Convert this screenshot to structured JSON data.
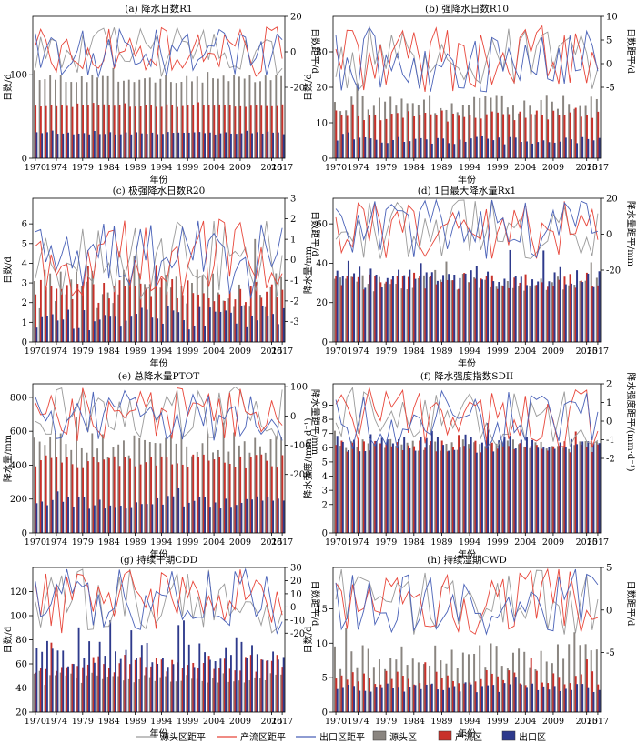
{
  "figure": {
    "colors": {
      "source_line": "#9a9a9a",
      "production_line": "#e8463a",
      "outlet_line": "#4a62b8",
      "source_bar": "#8a8580",
      "production_bar": "#c8312a",
      "outlet_bar": "#2e3a8c"
    },
    "legend": [
      {
        "label": "源头区距平",
        "kind": "line",
        "color_key": "source_line"
      },
      {
        "label": "产流区距平",
        "kind": "line",
        "color_key": "production_line"
      },
      {
        "label": "出口区距平",
        "kind": "line",
        "color_key": "outlet_line"
      },
      {
        "label": "源头区",
        "kind": "bar",
        "color_key": "source_bar"
      },
      {
        "label": "产流区",
        "kind": "bar",
        "color_key": "production_bar"
      },
      {
        "label": "出口区",
        "kind": "bar",
        "color_key": "outlet_bar"
      }
    ]
  },
  "chart_data": [
    {
      "id": "a",
      "type": "bar",
      "title": "(a) 降水日数R1",
      "xlabel": "年份",
      "ylabel": "日数/d",
      "y2label": "日数距平/d",
      "x_range": [
        1970,
        2017
      ],
      "x_ticks": [
        "1970",
        "1974",
        "1979",
        "1984",
        "1989",
        "1994",
        "1999",
        "2004",
        "2009",
        "2015",
        "2017"
      ],
      "ylim": [
        0,
        170
      ],
      "y_ticks": [
        0,
        100
      ],
      "y2lim": [
        -60,
        20
      ],
      "y2_ticks": [
        -20,
        0,
        20
      ],
      "series_base": {
        "source": 95,
        "production": 63,
        "outlet": 30
      },
      "anomaly_base": {
        "source": 5,
        "production": 1.5,
        "outlet": 1.5
      },
      "lines_band": [
        -14,
        14
      ]
    },
    {
      "id": "b",
      "type": "bar",
      "title": "(b) 强降水日数R10",
      "xlabel": "年份",
      "ylabel": "日数/d",
      "y2label": "日数距平/d",
      "x_range": [
        1970,
        2017
      ],
      "x_ticks": [
        "1970",
        "1974",
        "1979",
        "1984",
        "1989",
        "1994",
        "1999",
        "2004",
        "2009",
        "2015",
        "2017"
      ],
      "ylim": [
        0,
        40
      ],
      "y_ticks": [
        0,
        10,
        20,
        30
      ],
      "y2lim": [
        -20,
        10
      ],
      "y2_ticks": [
        -5,
        0,
        5,
        10
      ],
      "series_base": {
        "source": 15,
        "production": 12,
        "outlet": 5
      },
      "anomaly_base": {
        "source": 2.5,
        "production": 1.5,
        "outlet": 1
      },
      "lines_band": [
        -6,
        8
      ]
    },
    {
      "id": "c",
      "type": "bar",
      "title": "(c) 极强降水日数R20",
      "xlabel": "年份",
      "ylabel": "日数/d",
      "y2label": "日数距平/d",
      "x_range": [
        1970,
        2017
      ],
      "x_ticks": [
        "1970",
        "1974",
        "1979",
        "1984",
        "1989",
        "1994",
        "1999",
        "2004",
        "2009",
        "2015",
        "2017"
      ],
      "ylim": [
        0,
        7.3
      ],
      "y_ticks": [
        0,
        1,
        2,
        3,
        4,
        5,
        6
      ],
      "y2lim": [
        -4,
        3
      ],
      "y2_ticks": [
        -3,
        -2,
        -1,
        0,
        1,
        2,
        3
      ],
      "series_base": {
        "source": 2.7,
        "production": 2.6,
        "outlet": 1.2
      },
      "anomaly_base": {
        "source": 0.9,
        "production": 0.6,
        "outlet": 0.6
      },
      "lines_band": [
        -2,
        2
      ]
    },
    {
      "id": "d",
      "type": "bar",
      "title": "(d) 1日最大降水量Rx1",
      "xlabel": "年份",
      "ylabel": "降水量/mm",
      "y2label": "降水量距平/mm",
      "x_range": [
        1970,
        2017
      ],
      "x_ticks": [
        "1970",
        "1974",
        "1979",
        "1984",
        "1989",
        "1994",
        "1999",
        "2004",
        "2009",
        "2015",
        "2017"
      ],
      "ylim": [
        0,
        73
      ],
      "y_ticks": [
        0,
        20,
        40,
        60
      ],
      "y2lim": [
        -60,
        20
      ],
      "y2_ticks": [
        -20,
        0,
        20
      ],
      "series_base": {
        "source": 30,
        "production": 31,
        "outlet": 33
      },
      "anomaly_base": {
        "source": 4,
        "production": 4,
        "outlet": 5
      },
      "lines_band": [
        -14,
        20
      ]
    },
    {
      "id": "e",
      "type": "bar",
      "title": "(e) 总降水量PTOT",
      "xlabel": "年份",
      "ylabel": "降水量/mm",
      "y2label": "降水量距平/mm",
      "x_range": [
        1970,
        2017
      ],
      "x_ticks": [
        "1970",
        "1974",
        "1979",
        "1984",
        "1989",
        "1994",
        "1999",
        "2004",
        "2009",
        "2015",
        "2017"
      ],
      "ylim": [
        0,
        880
      ],
      "y_ticks": [
        0,
        200,
        400,
        600,
        800
      ],
      "y2lim": [
        -400,
        110
      ],
      "y2_ticks": [
        -200,
        -100,
        0,
        100
      ],
      "series_base": {
        "source": 520,
        "production": 420,
        "outlet": 180
      },
      "anomaly_base": {
        "source": 70,
        "production": 40,
        "outlet": 35
      },
      "lines_band": [
        -90,
        100
      ]
    },
    {
      "id": "f",
      "type": "bar",
      "title": "(f) 降水强度指数SDII",
      "xlabel": "年份",
      "ylabel": "降水强度/(mm·d⁻¹)",
      "y2label": "降水强度距平/(mm·d⁻¹)",
      "x_range": [
        1970,
        2017
      ],
      "x_ticks": [
        "1970",
        "1974",
        "1979",
        "1984",
        "1989",
        "1994",
        "1999",
        "2004",
        "2009",
        "2015",
        "2017"
      ],
      "ylim": [
        0,
        10.5
      ],
      "y_ticks": [
        0,
        2,
        3,
        4,
        5,
        6,
        7,
        8,
        9
      ],
      "y2lim": [
        -6,
        2
      ],
      "y2_ticks": [
        -2,
        -1,
        0,
        1,
        2
      ],
      "series_base": {
        "source": 6.2,
        "production": 6.1,
        "outlet": 6.3
      },
      "anomaly_base": {
        "source": 0.4,
        "production": 0.4,
        "outlet": 0.6
      },
      "lines_band": [
        -1.5,
        1.8
      ]
    },
    {
      "id": "g",
      "type": "bar",
      "title": "(g) 持续干期CDD",
      "xlabel": "年份",
      "ylabel": "日数/d",
      "y2label": "日数距平/d",
      "x_range": [
        1970,
        2017
      ],
      "x_ticks": [
        "1970",
        "1974",
        "1979",
        "1984",
        "1989",
        "1994",
        "1999",
        "2004",
        "2009",
        "2015",
        "2017"
      ],
      "ylim": [
        20,
        140
      ],
      "y_ticks": [
        20,
        40,
        60,
        80,
        100,
        120
      ],
      "y2lim": [
        -80,
        30
      ],
      "y2_ticks": [
        -20,
        -10,
        0,
        10,
        20,
        30
      ],
      "series_base": {
        "source": 48,
        "production": 60,
        "outlet": 68
      },
      "anomaly_base": {
        "source": 5,
        "production": 7,
        "outlet": 10
      },
      "lines_band": [
        -20,
        30
      ]
    },
    {
      "id": "h",
      "type": "bar",
      "title": "(h) 持续湿期CWD",
      "xlabel": "年份",
      "ylabel": "日数/d",
      "y2label": "日数距平/d",
      "x_range": [
        1970,
        2017
      ],
      "x_ticks": [
        "1970",
        "1974",
        "1979",
        "1984",
        "1989",
        "1994",
        "1999",
        "2004",
        "2009",
        "2015",
        "2017"
      ],
      "ylim": [
        0,
        21
      ],
      "y_ticks": [
        0,
        5,
        10,
        15
      ],
      "y2lim": [
        -12,
        5
      ],
      "y2_ticks": [
        -5,
        0,
        5
      ],
      "series_base": {
        "source": 8,
        "production": 5,
        "outlet": 3.5
      },
      "anomaly_base": {
        "source": 1.8,
        "production": 1,
        "outlet": 0.6
      },
      "lines_band": [
        -3,
        5
      ]
    }
  ]
}
